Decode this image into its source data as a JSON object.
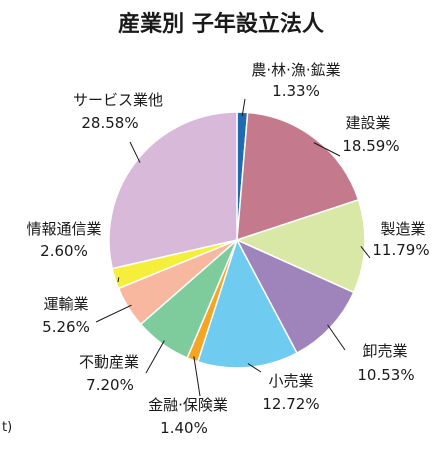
{
  "chart_data": {
    "type": "pie",
    "title": "産業別 子年設立法人",
    "slices": [
      {
        "name": "農·林·漁·鉱業",
        "value": 1.33,
        "label": "1.33%",
        "color": "#1f6bb0"
      },
      {
        "name": "建設業",
        "value": 18.59,
        "label": "18.59%",
        "color": "#c47a8c"
      },
      {
        "name": "製造業",
        "value": 11.79,
        "label": "11.79%",
        "color": "#d9e8a6"
      },
      {
        "name": "卸売業",
        "value": 10.53,
        "label": "10.53%",
        "color": "#9f84bb"
      },
      {
        "name": "小売業",
        "value": 12.72,
        "label": "12.72%",
        "color": "#6fcbef"
      },
      {
        "name": "金融·保険業",
        "value": 1.4,
        "label": "1.40%",
        "color": "#f5a524"
      },
      {
        "name": "不動産業",
        "value": 7.2,
        "label": "7.20%",
        "color": "#7ecb9c"
      },
      {
        "name": "運輸業",
        "value": 5.26,
        "label": "5.26%",
        "color": "#f8b8a0"
      },
      {
        "name": "情報通信業",
        "value": 2.6,
        "label": "2.60%",
        "color": "#f5ef3c"
      },
      {
        "name": "サービス業他",
        "value": 28.58,
        "label": "28.58%",
        "color": "#d9b9d9"
      }
    ],
    "start_angle_deg": 0,
    "direction": "clockwise"
  },
  "source_fragment": "t)"
}
